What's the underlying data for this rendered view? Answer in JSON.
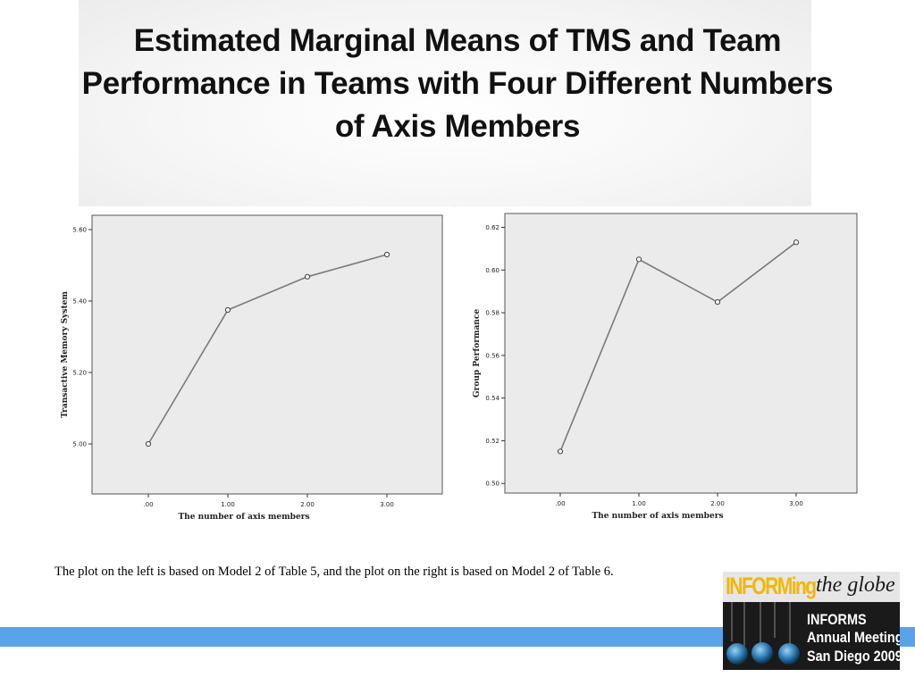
{
  "slide": {
    "title": "Estimated Marginal Means of TMS and Team Performance in Teams with Four Different Numbers of Axis Members",
    "caption": "The plot on the left is based on Model 2 of Table 5, and the plot on the right is based on Model 2 of Table 6."
  },
  "logo": {
    "informing": "INFORMing",
    "globe_text": "the globe",
    "line1": "INFORMS",
    "line2": "Annual Meeting",
    "line3": "San Diego 2009"
  },
  "colors": {
    "footer_bar": "#5aa3e8",
    "plot_background": "#ebebeb",
    "series_line": "#7a7a7a"
  },
  "chart_data": [
    {
      "type": "line",
      "xlabel": "The number of axis members",
      "ylabel": "Transactive Memory System",
      "categories": [
        ".00",
        "1.00",
        "2.00",
        "3.00"
      ],
      "series": [
        {
          "values": [
            5.0,
            5.375,
            5.468,
            5.53
          ]
        }
      ],
      "ylim": [
        4.86,
        5.64
      ],
      "yticks": [
        "5.00",
        "5.20",
        "5.40",
        "5.60"
      ],
      "ytick_values": [
        5.0,
        5.2,
        5.4,
        5.6
      ],
      "grid": false,
      "legend": "none"
    },
    {
      "type": "line",
      "xlabel": "The number of axis members",
      "ylabel": "Group Performance",
      "categories": [
        ".00",
        "1.00",
        "2.00",
        "3.00"
      ],
      "series": [
        {
          "values": [
            0.515,
            0.605,
            0.585,
            0.613
          ]
        }
      ],
      "ylim": [
        0.4955,
        0.6265
      ],
      "yticks": [
        "0.50",
        "0.52",
        "0.54",
        "0.56",
        "0.58",
        "0.60",
        "0.62"
      ],
      "ytick_values": [
        0.5,
        0.52,
        0.54,
        0.56,
        0.58,
        0.6,
        0.62
      ],
      "grid": false,
      "legend": "none"
    }
  ]
}
